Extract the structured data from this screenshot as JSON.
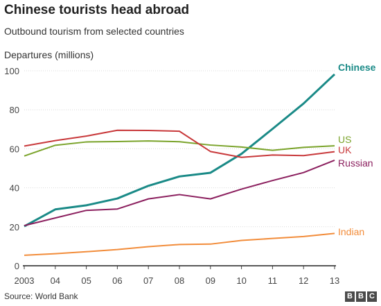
{
  "header": {
    "title": "Chinese tourists head abroad",
    "subtitle": "Outbound tourism from selected countries"
  },
  "footer": {
    "source": "Source: World Bank",
    "logo_letters": [
      "B",
      "B",
      "C"
    ]
  },
  "chart_data": {
    "type": "line",
    "title": "Chinese tourists head abroad",
    "subtitle": "Outbound tourism from selected countries",
    "ylabel": "Departures (millions)",
    "xlabel": "",
    "x": [
      2003,
      2004,
      2005,
      2006,
      2007,
      2008,
      2009,
      2010,
      2011,
      2012,
      2013
    ],
    "x_tick_labels": [
      "2003",
      "04",
      "05",
      "06",
      "07",
      "08",
      "09",
      "10",
      "11",
      "12",
      "13"
    ],
    "y_ticks": [
      0,
      20,
      40,
      60,
      80,
      100
    ],
    "ylim": [
      0,
      100
    ],
    "grid": "horizontal",
    "legend": "labels at line ends (right)",
    "series": [
      {
        "name": "Chinese",
        "color": "#1a8a87",
        "bold": true,
        "values": [
          20.2,
          28.9,
          31.0,
          34.5,
          41.0,
          45.8,
          47.7,
          57.4,
          70.2,
          83.2,
          98.2
        ]
      },
      {
        "name": "US",
        "color": "#7aa32a",
        "values": [
          56.3,
          61.8,
          63.5,
          63.7,
          64.0,
          63.6,
          61.9,
          60.9,
          59.2,
          60.7,
          61.5
        ]
      },
      {
        "name": "UK",
        "color": "#c8383a",
        "values": [
          61.4,
          64.2,
          66.5,
          69.5,
          69.4,
          69.0,
          58.6,
          55.6,
          56.8,
          56.5,
          58.5
        ]
      },
      {
        "name": "Russian",
        "color": "#8b1f5e",
        "values": [
          20.6,
          24.5,
          28.4,
          29.1,
          34.3,
          36.5,
          34.3,
          39.3,
          43.7,
          47.8,
          54.1
        ]
      },
      {
        "name": "Indian",
        "color": "#f28c3a",
        "values": [
          5.4,
          6.2,
          7.2,
          8.3,
          9.8,
          10.9,
          11.1,
          13.0,
          14.0,
          15.0,
          16.6
        ]
      }
    ]
  }
}
